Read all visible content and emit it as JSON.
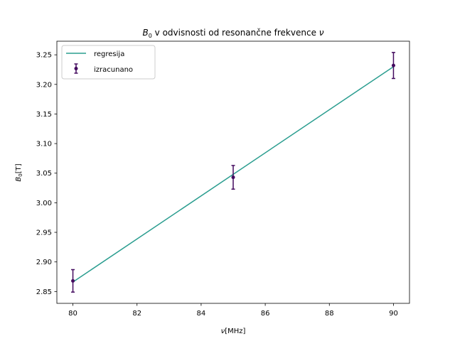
{
  "chart_data": {
    "type": "scatter",
    "title": {
      "symbol": "B",
      "sub": "0",
      "text": " v odvisnosti od resonančne frekvence ",
      "nu": "ν"
    },
    "xlabel": {
      "symbol": "ν",
      "unit": "[MHz]"
    },
    "ylabel": {
      "symbol": "B",
      "sub": "0",
      "unit": "[T]"
    },
    "xlim": [
      79.5,
      90.5
    ],
    "ylim": [
      2.83,
      3.273
    ],
    "xticks": [
      80,
      82,
      84,
      86,
      88,
      90
    ],
    "xtick_labels": [
      "80",
      "82",
      "84",
      "86",
      "88",
      "90"
    ],
    "yticks": [
      2.85,
      2.9,
      2.95,
      3.0,
      3.05,
      3.1,
      3.15,
      3.2,
      3.25
    ],
    "ytick_labels": [
      "2.85",
      "2.90",
      "2.95",
      "3.00",
      "3.05",
      "3.10",
      "3.15",
      "3.20",
      "3.25"
    ],
    "grid": false,
    "legend_position": "top-left",
    "series": [
      {
        "name": "regresija",
        "kind": "line",
        "color": "#2a9d8f",
        "x": [
          80,
          90
        ],
        "y": [
          2.866,
          3.23
        ]
      },
      {
        "name": "izracunano",
        "kind": "errorbar",
        "color": "#440b5f",
        "x": [
          80,
          85,
          90
        ],
        "y": [
          2.868,
          3.043,
          3.232
        ],
        "yerr": [
          0.019,
          0.02,
          0.022
        ]
      }
    ]
  }
}
